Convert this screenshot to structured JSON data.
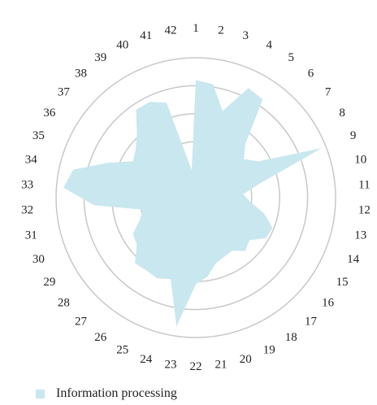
{
  "chart_data": {
    "type": "radar",
    "categories": [
      "1",
      "2",
      "3",
      "4",
      "5",
      "6",
      "7",
      "8",
      "9",
      "10",
      "11",
      "12",
      "13",
      "14",
      "15",
      "16",
      "17",
      "18",
      "19",
      "20",
      "21",
      "22",
      "23",
      "24",
      "25",
      "26",
      "27",
      "28",
      "29",
      "30",
      "31",
      "32",
      "33",
      "34",
      "35",
      "36",
      "37",
      "38",
      "39",
      "40",
      "41",
      "42"
    ],
    "series": [
      {
        "name": "Information processing",
        "color": "#c9e7ee",
        "values": [
          0.84,
          0.82,
          0.65,
          0.87,
          0.85,
          0.52,
          0.44,
          0.52,
          0.97,
          0.48,
          0.34,
          0.39,
          0.5,
          0.59,
          0.58,
          0.49,
          0.52,
          0.46,
          0.47,
          0.49,
          0.57,
          0.62,
          0.93,
          0.61,
          0.64,
          0.63,
          0.64,
          0.54,
          0.52,
          0.43,
          0.39,
          0.73,
          0.95,
          0.9,
          0.68,
          0.52,
          0.55,
          0.62,
          0.76,
          0.76,
          0.71,
          0.2
        ]
      }
    ],
    "rlim": [
      0,
      1
    ],
    "rings": [
      0.4,
      0.6,
      0.8,
      1.0
    ],
    "grid": true,
    "legend_position": "bottom-left"
  }
}
